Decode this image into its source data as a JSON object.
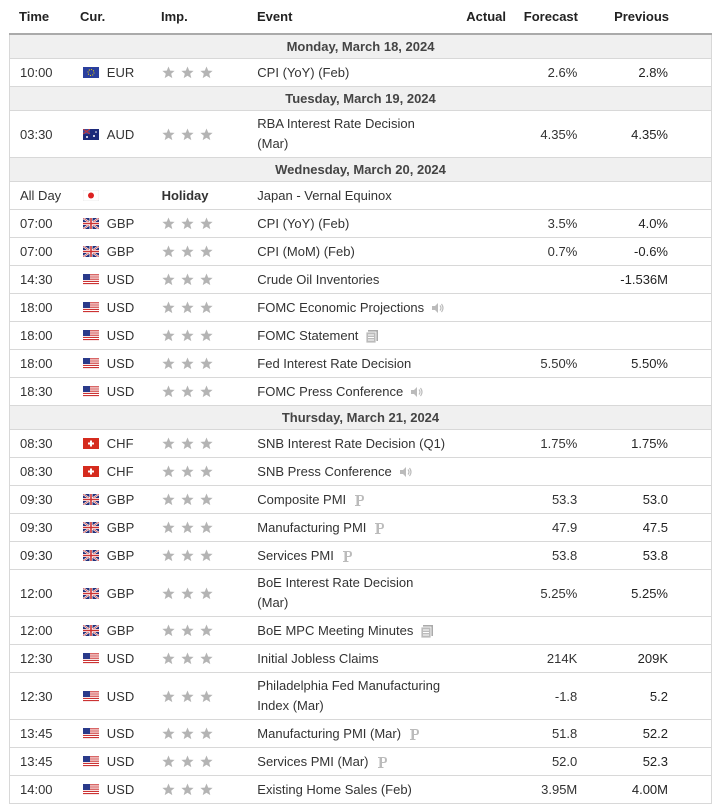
{
  "header": {
    "time": "Time",
    "currency": "Cur.",
    "importance": "Imp.",
    "event": "Event",
    "actual": "Actual",
    "forecast": "Forecast",
    "previous": "Previous"
  },
  "days": [
    {
      "date": "Monday, March 18, 2024",
      "events": [
        {
          "time": "10:00",
          "flag": "eu",
          "currency": "EUR",
          "event": "CPI (YoY) (Feb)",
          "forecast": "2.6%",
          "previous": "2.8%"
        }
      ]
    },
    {
      "date": "Tuesday, March 19, 2024",
      "events": [
        {
          "time": "03:30",
          "flag": "au",
          "currency": "AUD",
          "event": "RBA Interest Rate Decision (Mar)",
          "forecast": "4.35%",
          "previous": "4.35%"
        }
      ]
    },
    {
      "date": "Wednesday, March 20, 2024",
      "events": [
        {
          "time": "All Day",
          "flag": "jp",
          "importance": "Holiday",
          "event": "Japan - Vernal Equinox"
        },
        {
          "time": "07:00",
          "flag": "gb",
          "currency": "GBP",
          "event": "CPI (YoY) (Feb)",
          "forecast": "3.5%",
          "previous": "4.0%"
        },
        {
          "time": "07:00",
          "flag": "gb",
          "currency": "GBP",
          "event": "CPI (MoM) (Feb)",
          "forecast": "0.7%",
          "previous": "-0.6%"
        },
        {
          "time": "14:30",
          "flag": "us",
          "currency": "USD",
          "event": "Crude Oil Inventories",
          "previous": "-1.536M"
        },
        {
          "time": "18:00",
          "flag": "us",
          "currency": "USD",
          "event": "FOMC Economic Projections",
          "icon": "speaker"
        },
        {
          "time": "18:00",
          "flag": "us",
          "currency": "USD",
          "event": "FOMC Statement",
          "icon": "doc"
        },
        {
          "time": "18:00",
          "flag": "us",
          "currency": "USD",
          "event": "Fed Interest Rate Decision",
          "forecast": "5.50%",
          "previous": "5.50%"
        },
        {
          "time": "18:30",
          "flag": "us",
          "currency": "USD",
          "event": "FOMC Press Conference",
          "icon": "speaker"
        }
      ]
    },
    {
      "date": "Thursday, March 21, 2024",
      "events": [
        {
          "time": "08:30",
          "flag": "ch",
          "currency": "CHF",
          "event": "SNB Interest Rate Decision (Q1)",
          "forecast": "1.75%",
          "previous": "1.75%"
        },
        {
          "time": "08:30",
          "flag": "ch",
          "currency": "CHF",
          "event": "SNB Press Conference",
          "icon": "speaker"
        },
        {
          "time": "09:30",
          "flag": "gb",
          "currency": "GBP",
          "event": "Composite PMI",
          "icon": "p",
          "forecast": "53.3",
          "previous": "53.0"
        },
        {
          "time": "09:30",
          "flag": "gb",
          "currency": "GBP",
          "event": "Manufacturing PMI",
          "icon": "p",
          "forecast": "47.9",
          "previous": "47.5"
        },
        {
          "time": "09:30",
          "flag": "gb",
          "currency": "GBP",
          "event": "Services PMI",
          "icon": "p",
          "forecast": "53.8",
          "previous": "53.8"
        },
        {
          "time": "12:00",
          "flag": "gb",
          "currency": "GBP",
          "event": "BoE Interest Rate Decision (Mar)",
          "forecast": "5.25%",
          "previous": "5.25%"
        },
        {
          "time": "12:00",
          "flag": "gb",
          "currency": "GBP",
          "event": "BoE MPC Meeting Minutes",
          "icon": "doc"
        },
        {
          "time": "12:30",
          "flag": "us",
          "currency": "USD",
          "event": "Initial Jobless Claims",
          "forecast": "214K",
          "previous": "209K"
        },
        {
          "time": "12:30",
          "flag": "us",
          "currency": "USD",
          "event": "Philadelphia Fed Manufacturing Index (Mar)",
          "forecast": "-1.8",
          "previous": "5.2"
        },
        {
          "time": "13:45",
          "flag": "us",
          "currency": "USD",
          "event": "Manufacturing PMI (Mar)",
          "icon": "p",
          "forecast": "51.8",
          "previous": "52.2"
        },
        {
          "time": "13:45",
          "flag": "us",
          "currency": "USD",
          "event": "Services PMI (Mar)",
          "icon": "p",
          "forecast": "52.0",
          "previous": "52.3"
        },
        {
          "time": "14:00",
          "flag": "us",
          "currency": "USD",
          "event": "Existing Home Sales (Feb)",
          "forecast": "3.95M",
          "previous": "4.00M"
        }
      ]
    }
  ]
}
